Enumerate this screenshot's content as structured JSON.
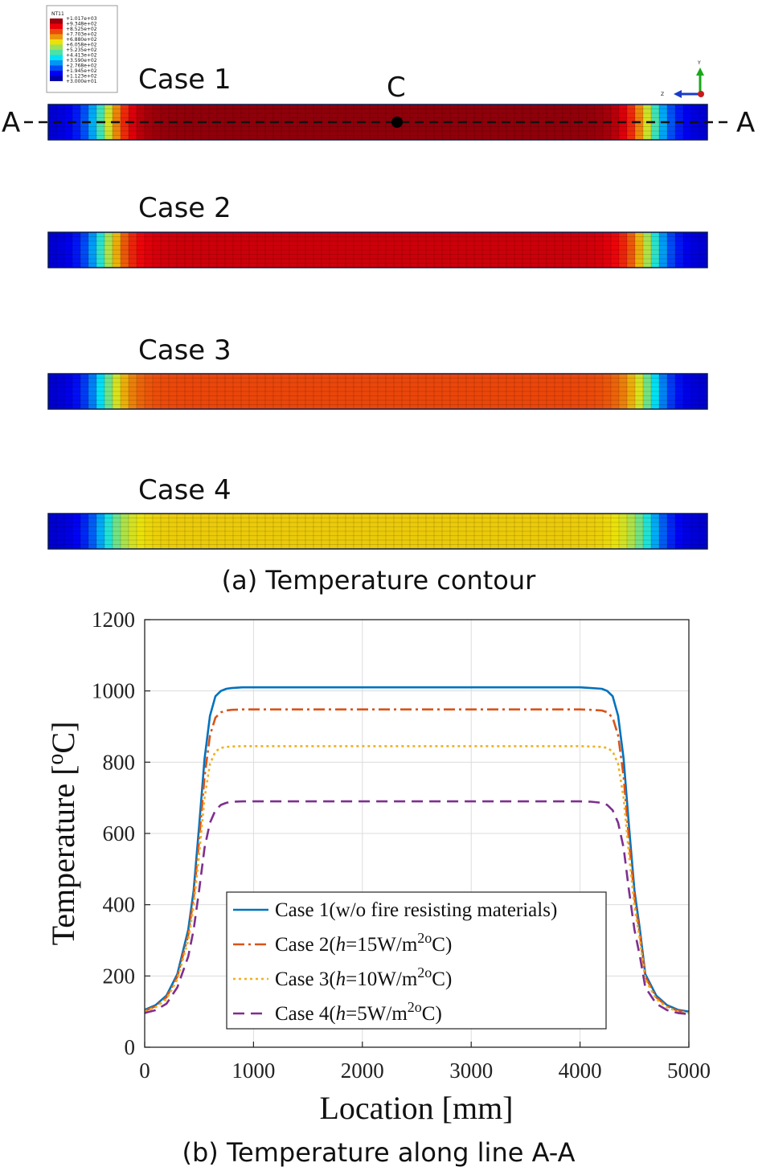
{
  "contour": {
    "colorbar": {
      "title": "NT11",
      "labels": [
        "+1.017e+03",
        "+9.348e+02",
        "+8.525e+02",
        "+7.703e+02",
        "+6.880e+02",
        "+6.058e+02",
        "+5.235e+02",
        "+4.413e+02",
        "+3.590e+02",
        "+2.768e+02",
        "+1.945e+02",
        "+1.123e+02",
        "+3.000e+01"
      ]
    },
    "section_label_left": "A",
    "section_label_right": "A",
    "point_label": "C",
    "axis_triad": {
      "y": "Y",
      "z": "Z"
    },
    "cases": [
      {
        "label": "Case 1",
        "peak_band": 0.97
      },
      {
        "label": "Case 2",
        "peak_band": 0.9
      },
      {
        "label": "Case 3",
        "peak_band": 0.78
      },
      {
        "label": "Case 4",
        "peak_band": 0.62
      }
    ],
    "caption": "(a) Temperature contour"
  },
  "chart_data": {
    "type": "line",
    "title": "",
    "xlabel": "Location  [mm]",
    "ylabel": "Temperature  [",
    "ylabel_sup": "o",
    "ylabel_tail": "C]",
    "xlim": [
      0,
      5000
    ],
    "ylim": [
      0,
      1200
    ],
    "xticks": [
      0,
      1000,
      2000,
      3000,
      4000,
      5000
    ],
    "yticks": [
      0,
      200,
      400,
      600,
      800,
      1000,
      1200
    ],
    "grid": true,
    "legend_position": "bottom-center",
    "series": [
      {
        "name": "Case 1",
        "legend": {
          "pre": "Case 1(w/o fire resisting materials)",
          "h": "",
          "post": "",
          "sup": "",
          "tail": ""
        },
        "color": "#0072BD",
        "dash": "solid",
        "x": [
          0,
          100,
          200,
          300,
          400,
          450,
          500,
          550,
          600,
          650,
          700,
          750,
          800,
          900,
          1000,
          2500,
          4000,
          4100,
          4200,
          4250,
          4300,
          4350,
          4400,
          4450,
          4500,
          4550,
          4600,
          4700,
          4800,
          4900,
          5000
        ],
        "y": [
          105,
          118,
          145,
          205,
          330,
          440,
          620,
          810,
          930,
          985,
          1000,
          1006,
          1008,
          1010,
          1010,
          1010,
          1010,
          1008,
          1006,
          1000,
          985,
          930,
          810,
          620,
          440,
          330,
          205,
          145,
          118,
          105,
          100
        ]
      },
      {
        "name": "Case 2",
        "legend": {
          "pre": "Case 2(",
          "h": "h",
          "post": "=15W/m",
          "sup": "2o",
          "tail": "C)"
        },
        "color": "#D95319",
        "dash": "14,5,3,5",
        "x": [
          0,
          100,
          200,
          300,
          400,
          450,
          500,
          550,
          600,
          650,
          700,
          750,
          800,
          900,
          1000,
          2500,
          4000,
          4100,
          4200,
          4250,
          4300,
          4350,
          4400,
          4450,
          4500,
          4550,
          4600,
          4700,
          4800,
          4900,
          5000
        ],
        "y": [
          102,
          115,
          140,
          198,
          315,
          420,
          580,
          760,
          875,
          925,
          940,
          945,
          947,
          948,
          948,
          948,
          948,
          947,
          945,
          940,
          925,
          875,
          760,
          580,
          420,
          315,
          198,
          140,
          115,
          102,
          98
        ]
      },
      {
        "name": "Case 3",
        "legend": {
          "pre": "Case 3(",
          "h": "h",
          "post": "=10W/m",
          "sup": "2o",
          "tail": "C)"
        },
        "color": "#EDB120",
        "dash": "3,4",
        "x": [
          0,
          100,
          200,
          300,
          400,
          450,
          500,
          550,
          600,
          650,
          700,
          750,
          800,
          900,
          1000,
          2500,
          4000,
          4100,
          4200,
          4250,
          4300,
          4350,
          4400,
          4450,
          4500,
          4550,
          4600,
          4700,
          4800,
          4900,
          5000
        ],
        "y": [
          100,
          112,
          135,
          190,
          300,
          395,
          540,
          700,
          795,
          830,
          840,
          843,
          844,
          845,
          845,
          845,
          845,
          844,
          843,
          840,
          830,
          795,
          700,
          540,
          395,
          300,
          190,
          135,
          112,
          100,
          96
        ]
      },
      {
        "name": "Case 4",
        "legend": {
          "pre": "Case 4(",
          "h": "h",
          "post": "=5W/m",
          "sup": "2o",
          "tail": "C)"
        },
        "color": "#7E2F8E",
        "dash": "14,8",
        "x": [
          0,
          100,
          200,
          300,
          400,
          450,
          500,
          550,
          600,
          650,
          700,
          750,
          800,
          900,
          1000,
          2500,
          4000,
          4100,
          4200,
          4250,
          4300,
          4350,
          4400,
          4450,
          4500,
          4550,
          4600,
          4700,
          4800,
          4900,
          5000
        ],
        "y": [
          96,
          104,
          122,
          168,
          255,
          330,
          440,
          560,
          630,
          665,
          680,
          686,
          689,
          690,
          690,
          690,
          690,
          689,
          686,
          680,
          665,
          630,
          560,
          440,
          330,
          255,
          168,
          122,
          104,
          96,
          93
        ]
      }
    ],
    "caption": "(b) Temperature along line A-A"
  }
}
